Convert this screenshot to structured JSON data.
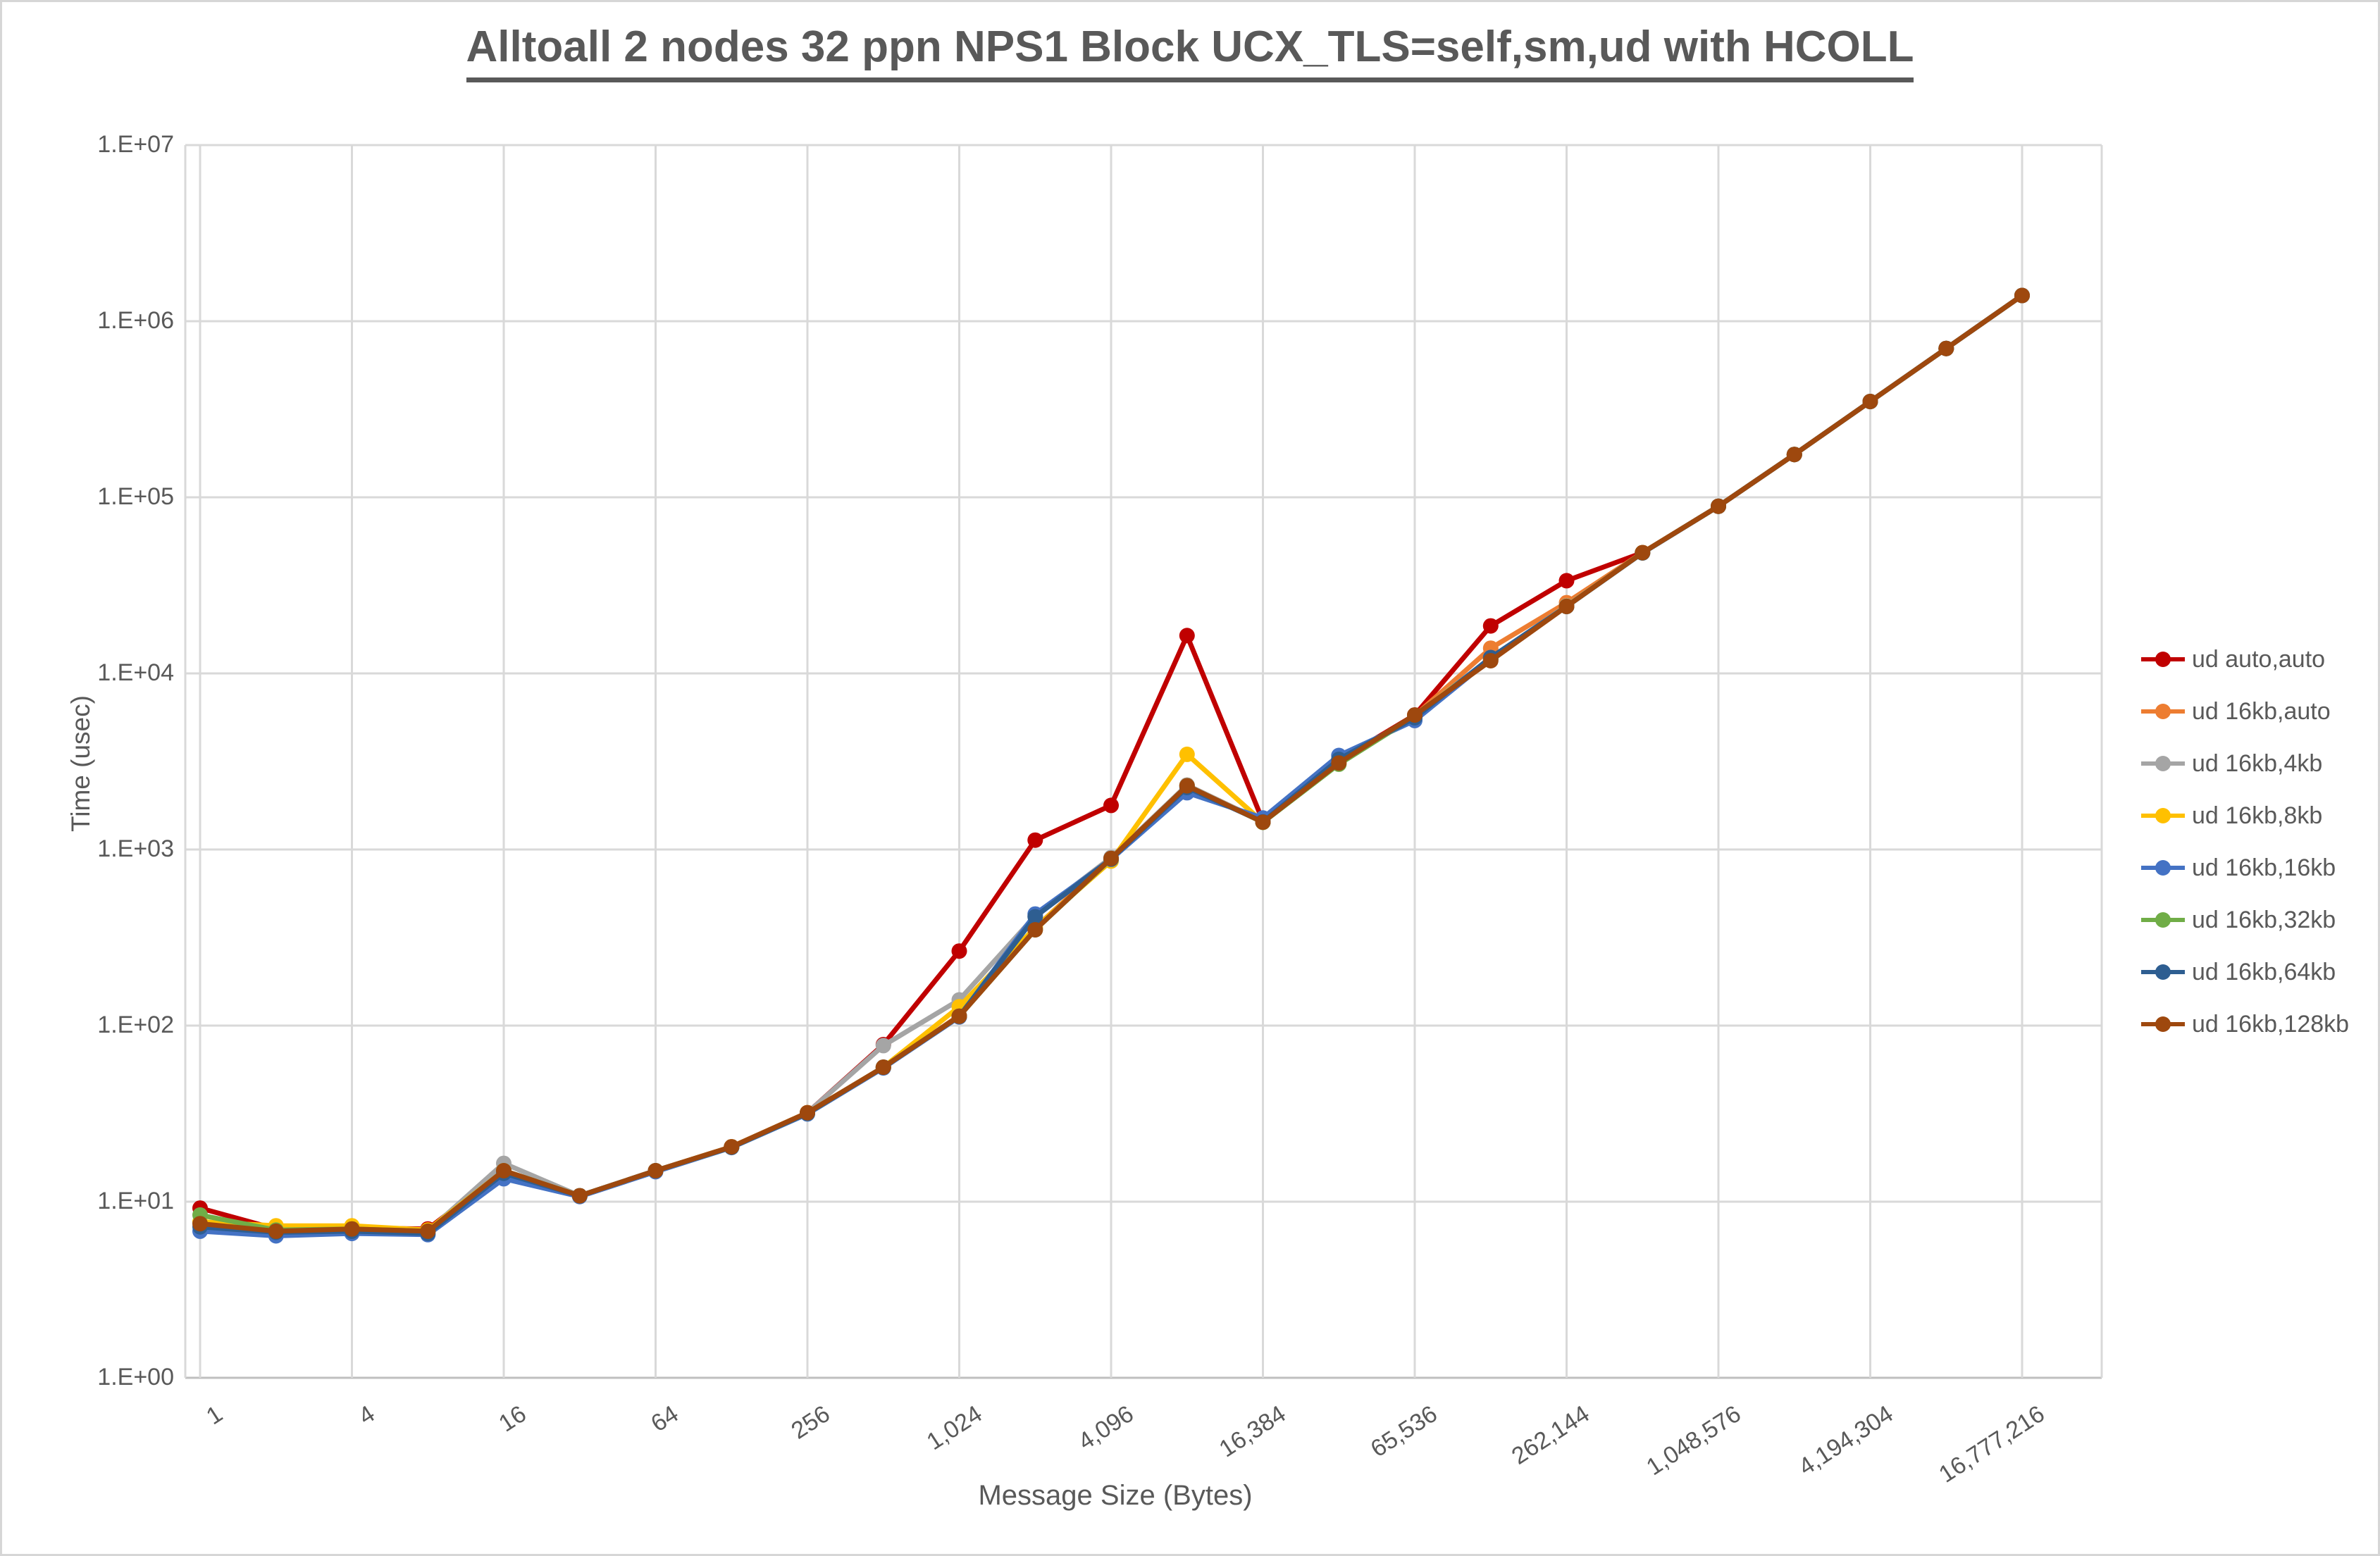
{
  "title": "Alltoall 2 nodes 32 ppn NPS1 Block UCX_TLS=self,sm,ud with HCOLL",
  "chart_data": {
    "type": "line",
    "title": "Alltoall 2 nodes 32 ppn NPS1 Block UCX_TLS=self,sm,ud with HCOLL",
    "xlabel": "Message Size (Bytes)",
    "ylabel": "Time (usec)",
    "x_scale": "log2",
    "y_scale": "log10",
    "ylim": [
      1,
      10000000
    ],
    "grid": true,
    "legend_position": "right",
    "y_tick_labels": [
      "1.E+00",
      "1.E+01",
      "1.E+02",
      "1.E+03",
      "1.E+04",
      "1.E+05",
      "1.E+06",
      "1.E+07"
    ],
    "x_tick_labels": [
      "1",
      "4",
      "16",
      "64",
      "256",
      "1,024",
      "4,096",
      "16,384",
      "65,536",
      "262,144",
      "1,048,576",
      "4,194,304",
      "16,777,216"
    ],
    "x": [
      1,
      2,
      4,
      8,
      16,
      32,
      64,
      128,
      256,
      512,
      1024,
      2048,
      4096,
      8192,
      16384,
      32768,
      65536,
      131072,
      262144,
      524288,
      1048576,
      2097152,
      4194304,
      8388608,
      16777216
    ],
    "series": [
      {
        "name": "ud auto,auto",
        "color": "#C00000",
        "values": [
          9.2,
          7.0,
          7.1,
          7.0,
          15.0,
          10.8,
          15.0,
          20.5,
          32,
          78,
          265,
          1130,
          1780,
          16400,
          1450,
          3200,
          5800,
          18600,
          33600,
          48500,
          89000,
          175000,
          350000,
          700000,
          1400000
        ]
      },
      {
        "name": "ud 16kb,auto",
        "color": "#ED7D31",
        "values": [
          7.6,
          6.9,
          7.0,
          6.8,
          15.0,
          10.8,
          15.0,
          20.5,
          32,
          58,
          114,
          360,
          890,
          2320,
          1440,
          3150,
          5750,
          13900,
          25200,
          48500,
          89000,
          175000,
          350000,
          700000,
          1400000
        ]
      },
      {
        "name": "ud 16kb,4kb",
        "color": "#A5A5A5",
        "values": [
          7.6,
          6.9,
          7.0,
          6.8,
          16.5,
          10.8,
          15.0,
          20.5,
          32,
          77,
          140,
          420,
          900,
          2320,
          1440,
          3150,
          5750,
          12200,
          24200,
          48500,
          89000,
          175000,
          350000,
          700000,
          1400000
        ]
      },
      {
        "name": "ud 16kb,8kb",
        "color": "#FFC000",
        "values": [
          7.7,
          7.3,
          7.3,
          6.9,
          15.0,
          10.8,
          15.0,
          20.5,
          32,
          58,
          128,
          360,
          860,
          3470,
          1430,
          3120,
          5750,
          12100,
          24100,
          48500,
          89000,
          175000,
          350000,
          700000,
          1400000
        ]
      },
      {
        "name": "ud 16kb,16kb",
        "color": "#4472C4",
        "values": [
          6.8,
          6.4,
          6.6,
          6.5,
          13.5,
          10.7,
          14.8,
          20.3,
          31.5,
          57.5,
          112,
          430,
          880,
          2100,
          1510,
          3420,
          5400,
          12100,
          24000,
          48300,
          89000,
          175000,
          350000,
          700000,
          1400000
        ]
      },
      {
        "name": "ud 16kb,32kb",
        "color": "#70AD47",
        "values": [
          8.4,
          6.9,
          7.0,
          6.8,
          15.0,
          10.8,
          15.0,
          20.4,
          31.8,
          58,
          113,
          350,
          885,
          2300,
          1425,
          3050,
          5700,
          12150,
          24000,
          48400,
          89000,
          175000,
          350000,
          700000,
          1400000
        ]
      },
      {
        "name": "ud 16kb,64kb",
        "color": "#2E5E91",
        "values": [
          7.2,
          6.7,
          6.8,
          6.6,
          14.5,
          10.8,
          15.0,
          20.4,
          31.8,
          58,
          113,
          415,
          885,
          2250,
          1435,
          3250,
          5600,
          12300,
          24000,
          48400,
          89000,
          175000,
          350000,
          700000,
          1400000
        ]
      },
      {
        "name": "ud 16kb,128kb",
        "color": "#9E480E",
        "values": [
          7.5,
          6.8,
          7.0,
          6.8,
          15.0,
          10.8,
          15.0,
          20.5,
          32,
          58,
          113,
          350,
          890,
          2300,
          1430,
          3100,
          5800,
          11800,
          24000,
          48500,
          89000,
          175000,
          350000,
          700000,
          1400000
        ]
      }
    ]
  },
  "colors": {
    "text": "#595959",
    "gridline": "#D9D9D9",
    "axis_line": "#BFBFBF",
    "background": "#FFFFFF"
  }
}
